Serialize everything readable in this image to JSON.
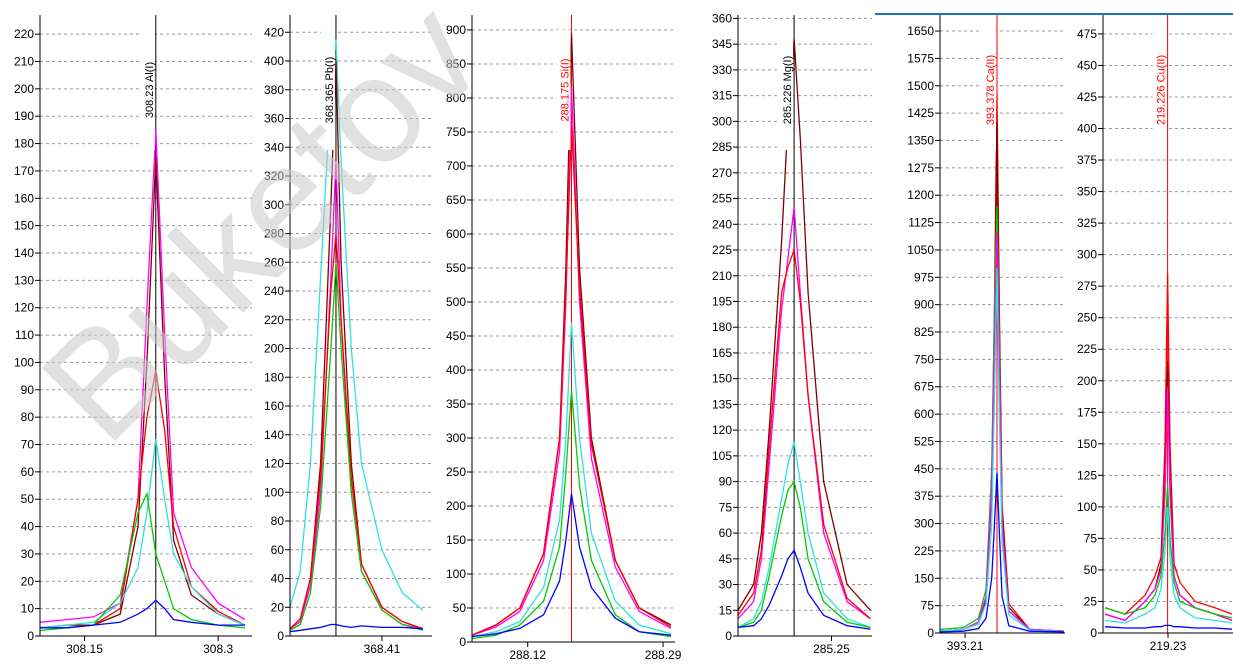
{
  "watermark": "Buketov",
  "chart_data": [
    {
      "type": "line",
      "marker_x": 308.23,
      "marker_label": "308.23 Al(I)",
      "marker_color": "#000000",
      "xlim": [
        308.1,
        308.338
      ],
      "xticks": [
        308.15,
        308.3
      ],
      "ylim": [
        0,
        227
      ],
      "yticks": [
        0,
        10,
        20,
        30,
        40,
        50,
        60,
        70,
        80,
        90,
        100,
        110,
        120,
        130,
        140,
        150,
        160,
        170,
        180,
        190,
        200,
        210,
        220
      ],
      "grid": true,
      "x": [
        308.1,
        308.13,
        308.16,
        308.19,
        308.21,
        308.22,
        308.23,
        308.24,
        308.25,
        308.27,
        308.3,
        308.33
      ],
      "series": [
        {
          "color": "#ff00ff",
          "values": [
            5,
            6,
            7,
            12,
            50,
            120,
            185,
            110,
            45,
            25,
            12,
            6
          ]
        },
        {
          "color": "#800000",
          "values": [
            3,
            4,
            4,
            8,
            40,
            100,
            175,
            95,
            35,
            15,
            8,
            4
          ]
        },
        {
          "color": "#ff0000",
          "values": [
            3,
            3,
            4,
            10,
            50,
            80,
            97,
            75,
            40,
            18,
            9,
            4
          ]
        },
        {
          "color": "#30e0e0",
          "values": [
            3,
            4,
            5,
            12,
            25,
            45,
            72,
            50,
            30,
            18,
            8,
            4
          ]
        },
        {
          "color": "#00cc00",
          "values": [
            2,
            3,
            4,
            15,
            45,
            52,
            30,
            20,
            10,
            6,
            4,
            3
          ]
        },
        {
          "color": "#0000ff",
          "values": [
            3,
            3,
            4,
            5,
            8,
            10,
            13,
            10,
            6,
            5,
            4,
            4
          ]
        }
      ]
    },
    {
      "type": "line",
      "marker_x": 368.365,
      "marker_label": "368.365 Pb(I)",
      "marker_color": "#000000",
      "xlim": [
        368.32,
        368.459
      ],
      "xticks": [
        368.41
      ],
      "ylim": [
        0,
        432
      ],
      "yticks": [
        0,
        20,
        40,
        60,
        80,
        100,
        120,
        140,
        160,
        180,
        200,
        220,
        240,
        260,
        280,
        300,
        320,
        340,
        360,
        380,
        400,
        420
      ],
      "grid": true,
      "x": [
        368.32,
        368.33,
        368.34,
        368.35,
        368.36,
        368.365,
        368.37,
        368.38,
        368.39,
        368.41,
        368.43,
        368.45
      ],
      "series": [
        {
          "color": "#30e0e0",
          "values": [
            20,
            45,
            120,
            250,
            380,
            415,
            330,
            200,
            120,
            60,
            30,
            18
          ]
        },
        {
          "color": "#800000",
          "values": [
            5,
            10,
            40,
            120,
            300,
            400,
            260,
            120,
            50,
            20,
            10,
            5
          ]
        },
        {
          "color": "#ff00ff",
          "values": [
            5,
            10,
            35,
            100,
            250,
            330,
            220,
            100,
            45,
            18,
            8,
            5
          ]
        },
        {
          "color": "#ff0000",
          "values": [
            5,
            12,
            40,
            110,
            240,
            280,
            220,
            110,
            50,
            20,
            10,
            5
          ]
        },
        {
          "color": "#00cc00",
          "values": [
            4,
            8,
            30,
            90,
            200,
            260,
            200,
            100,
            45,
            18,
            8,
            4
          ]
        },
        {
          "color": "#0000ff",
          "values": [
            3,
            4,
            5,
            6,
            8,
            8,
            7,
            6,
            7,
            6,
            6,
            5
          ]
        }
      ]
    },
    {
      "type": "line",
      "marker_x": 288.175,
      "marker_label": "288.175 Si(I)",
      "marker_color": "#ff0000",
      "xlim": [
        288.05,
        288.305
      ],
      "xticks": [
        288.12,
        288.29
      ],
      "ylim": [
        0,
        922
      ],
      "yticks": [
        0,
        50,
        100,
        150,
        200,
        250,
        300,
        350,
        400,
        450,
        500,
        550,
        600,
        650,
        700,
        750,
        800,
        850,
        900
      ],
      "grid": true,
      "x": [
        288.05,
        288.08,
        288.11,
        288.14,
        288.16,
        288.168,
        288.175,
        288.185,
        288.2,
        288.23,
        288.26,
        288.3
      ],
      "series": [
        {
          "color": "#800000",
          "values": [
            10,
            25,
            50,
            130,
            300,
            550,
            895,
            550,
            300,
            120,
            50,
            25
          ]
        },
        {
          "color": "#ff00ff",
          "values": [
            10,
            22,
            45,
            120,
            280,
            500,
            815,
            500,
            270,
            110,
            45,
            20
          ]
        },
        {
          "color": "#ff0000",
          "values": [
            10,
            25,
            50,
            130,
            300,
            520,
            760,
            520,
            290,
            120,
            50,
            22
          ]
        },
        {
          "color": "#30e0e0",
          "values": [
            8,
            15,
            30,
            80,
            180,
            300,
            470,
            300,
            160,
            60,
            25,
            12
          ]
        },
        {
          "color": "#00cc00",
          "values": [
            5,
            10,
            25,
            60,
            140,
            250,
            370,
            230,
            120,
            40,
            15,
            8
          ]
        },
        {
          "color": "#0000ff",
          "values": [
            8,
            12,
            20,
            40,
            90,
            150,
            218,
            140,
            80,
            35,
            15,
            10
          ]
        }
      ]
    },
    {
      "type": "line",
      "marker_x": 285.226,
      "marker_label": "285.226 Mg(I)",
      "marker_color": "#000000",
      "xlim": [
        285.19,
        285.276
      ],
      "xticks": [
        285.25
      ],
      "ylim": [
        0,
        362
      ],
      "yticks": [
        0,
        15,
        30,
        45,
        60,
        75,
        90,
        105,
        120,
        135,
        150,
        165,
        180,
        195,
        210,
        225,
        240,
        255,
        270,
        285,
        300,
        315,
        330,
        345,
        360
      ],
      "grid": true,
      "x": [
        285.19,
        285.2,
        285.205,
        285.21,
        285.218,
        285.222,
        285.226,
        285.23,
        285.235,
        285.245,
        285.26,
        285.275
      ],
      "series": [
        {
          "color": "#800000",
          "values": [
            15,
            30,
            60,
            120,
            230,
            300,
            348,
            290,
            200,
            90,
            30,
            15
          ]
        },
        {
          "color": "#ff00ff",
          "values": [
            10,
            20,
            45,
            100,
            190,
            220,
            250,
            200,
            140,
            60,
            20,
            10
          ]
        },
        {
          "color": "#ff0000",
          "values": [
            12,
            25,
            50,
            110,
            200,
            215,
            225,
            195,
            140,
            65,
            22,
            10
          ]
        },
        {
          "color": "#30e0e0",
          "values": [
            5,
            10,
            20,
            40,
            80,
            100,
            113,
            90,
            60,
            25,
            10,
            5
          ]
        },
        {
          "color": "#00cc00",
          "values": [
            5,
            8,
            15,
            35,
            70,
            85,
            90,
            75,
            45,
            20,
            8,
            5
          ]
        },
        {
          "color": "#0000ff",
          "values": [
            5,
            6,
            10,
            18,
            35,
            45,
            50,
            40,
            25,
            12,
            6,
            4
          ]
        }
      ]
    },
    {
      "type": "line",
      "marker_x": 393.378,
      "marker_label": "393.378 Ca(II)",
      "marker_color": "#ff0000",
      "xlim": [
        393.078,
        393.736
      ],
      "xticks": [
        393.21
      ],
      "ylim": [
        0,
        1694
      ],
      "yticks": [
        0,
        75,
        150,
        225,
        300,
        375,
        450,
        525,
        600,
        675,
        750,
        825,
        900,
        975,
        1050,
        1125,
        1200,
        1275,
        1350,
        1425,
        1500,
        1575,
        1650
      ],
      "grid": true,
      "x": [
        393.08,
        393.2,
        393.28,
        393.32,
        393.35,
        393.365,
        393.378,
        393.39,
        393.405,
        393.44,
        393.55,
        393.73
      ],
      "series": [
        {
          "color": "#ff0000",
          "values": [
            5,
            10,
            30,
            100,
            400,
            900,
            1475,
            900,
            350,
            80,
            10,
            5
          ]
        },
        {
          "color": "#800000",
          "values": [
            5,
            10,
            25,
            90,
            380,
            850,
            1400,
            850,
            330,
            70,
            10,
            5
          ]
        },
        {
          "color": "#00cc00",
          "values": [
            10,
            15,
            40,
            120,
            450,
            900,
            1170,
            800,
            300,
            60,
            10,
            5
          ]
        },
        {
          "color": "#ff00ff",
          "values": [
            5,
            10,
            30,
            100,
            400,
            800,
            1100,
            750,
            300,
            60,
            10,
            5
          ]
        },
        {
          "color": "#30e0e0",
          "values": [
            5,
            10,
            25,
            80,
            300,
            650,
            1000,
            600,
            250,
            50,
            8,
            4
          ]
        },
        {
          "color": "#0000ff",
          "values": [
            3,
            5,
            12,
            40,
            150,
            300,
            440,
            280,
            100,
            20,
            5,
            3
          ]
        }
      ]
    },
    {
      "type": "line",
      "marker_x": 219.226,
      "marker_label": "219.226 Cu(II)",
      "marker_color": "#ff0000",
      "xlim": [
        218.58,
        219.88
      ],
      "xticks": [
        219.23
      ],
      "ylim": [
        0,
        490
      ],
      "yticks": [
        0,
        25,
        50,
        75,
        100,
        125,
        150,
        175,
        200,
        225,
        250,
        275,
        300,
        325,
        350,
        375,
        400,
        425,
        450,
        475
      ],
      "grid": true,
      "x": [
        218.6,
        218.8,
        219.0,
        219.1,
        219.16,
        219.2,
        219.226,
        219.25,
        219.29,
        219.35,
        219.5,
        219.7,
        219.87
      ],
      "series": [
        {
          "color": "#ff0000",
          "values": [
            20,
            15,
            30,
            45,
            60,
            150,
            285,
            150,
            55,
            40,
            25,
            20,
            15
          ]
        },
        {
          "color": "#800000",
          "values": [
            15,
            10,
            25,
            35,
            55,
            120,
            215,
            120,
            45,
            30,
            20,
            15,
            10
          ]
        },
        {
          "color": "#ff00ff",
          "values": [
            15,
            10,
            25,
            35,
            50,
            110,
            195,
            110,
            45,
            30,
            20,
            15,
            10
          ]
        },
        {
          "color": "#00cc00",
          "values": [
            20,
            15,
            20,
            30,
            45,
            80,
            118,
            75,
            40,
            25,
            20,
            15,
            12
          ]
        },
        {
          "color": "#30e0e0",
          "values": [
            10,
            8,
            15,
            20,
            35,
            65,
            100,
            60,
            30,
            20,
            12,
            10,
            8
          ]
        },
        {
          "color": "#0000ff",
          "values": [
            5,
            4,
            4,
            5,
            5,
            6,
            6,
            6,
            5,
            5,
            4,
            4,
            3
          ]
        }
      ]
    }
  ]
}
